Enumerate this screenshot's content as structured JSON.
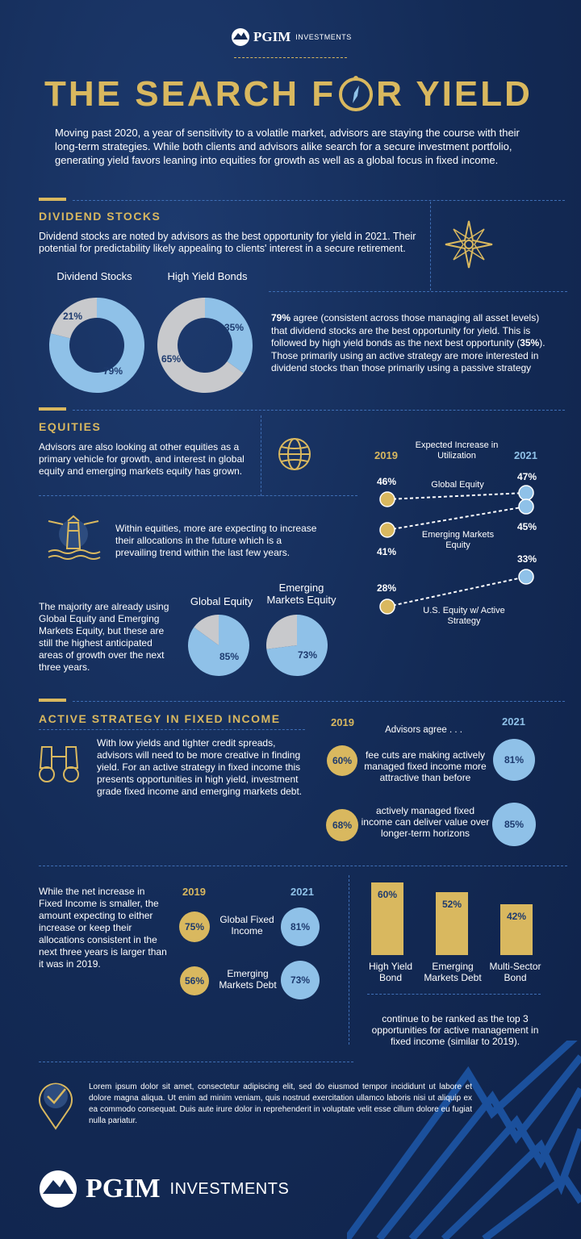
{
  "header": {
    "logo_text": "PGIM",
    "logo_sub": "INVESTMENTS",
    "title_part1": "THE SEARCH F",
    "title_part2": "R YIELD",
    "intro": "Moving past 2020, a year of sensitivity to a volatile market, advisors are staying the course with their long-term strategies. While both clients and advisors alike search for a secure investment portfolio, generating yield favors leaning into equities for growth as well as a global focus in fixed income."
  },
  "dividend": {
    "title": "DIVIDEND  STOCKS",
    "text": "Dividend stocks are noted by advisors as the best opportunity for yield in 2021. Their potential for predictability likely appealing to clients' interest in a secure retirement.",
    "donut1": {
      "label": "Dividend Stocks",
      "main": 79,
      "rest": 21,
      "main_label": "79%",
      "rest_label": "21%"
    },
    "donut2": {
      "label": "High Yield Bonds",
      "main": 35,
      "rest": 65,
      "main_label": "35%",
      "rest_label": "65%"
    },
    "note_bold": "79%",
    "note_a": " agree (consistent across those managing all asset levels) that dividend stocks are the best opportunity for yield.  This is followed by high yield bonds as the next best opportunity (",
    "note_bold2": "35%",
    "note_b": ").  Those primarily using an active strategy are more interested in dividend stocks than those primarily using a passive strategy"
  },
  "equities": {
    "title": "EQUITIES",
    "text1": "Advisors are also looking at other equities as a primary vehicle for growth, and interest in global equity and emerging markets equity has grown.",
    "text2": "Within equities, more are expecting to increase their allocations in the future which is a prevailing trend within the last few years.",
    "text3": "The majority are already using Global Equity and Emerging Markets Equity, but these are still the highest anticipated areas of growth over the next three years.",
    "pie1": {
      "label": "Global Equity",
      "value": 85,
      "value_label": "85%"
    },
    "pie2": {
      "label": "Emerging Markets Equity",
      "value": 73,
      "value_label": "73%"
    },
    "slope": {
      "year_left": "2019",
      "year_right": "2021",
      "header": "Expected Increase in Utilization",
      "rows": [
        {
          "label": "Global  Equity",
          "v2019": "46%",
          "v2021": "47%"
        },
        {
          "label": "Emerging Markets Equity",
          "v2019": "41%",
          "v2021": "45%"
        },
        {
          "label": "U.S. Equity w/ Active Strategy",
          "v2019": "28%",
          "v2021": "33%"
        }
      ]
    }
  },
  "fixed_income": {
    "title": "ACTIVE  STRATEGY  IN  FIXED  INCOME",
    "text1": "With low yields and tighter credit spreads, advisors will need to be more creative in finding yield. For an active strategy in fixed income this presents opportunities in high yield, investment grade fixed income and emerging markets debt.",
    "agree": {
      "year_left": "2019",
      "year_right": "2021",
      "header": "Advisors agree . . .",
      "rows": [
        {
          "text": "fee cuts are making actively managed fixed income more attractive than before",
          "v2019": "60%",
          "v2021": "81%"
        },
        {
          "text": "actively managed fixed income can deliver value over longer-term horizons",
          "v2019": "68%",
          "v2021": "85%"
        }
      ]
    },
    "text2": "While the net increase in Fixed Income is smaller, the amount expecting to either increase or keep their allocations consistent in the next three years is larger than it was in 2019.",
    "alloc": {
      "year_left": "2019",
      "year_right": "2021",
      "rows": [
        {
          "label": "Global Fixed Income",
          "v2019": "75%",
          "v2021": "81%"
        },
        {
          "label": "Emerging Markets Debt",
          "v2019": "56%",
          "v2021": "73%"
        }
      ]
    },
    "bars": [
      {
        "label": "High Yield Bond",
        "value": 60,
        "value_label": "60%"
      },
      {
        "label": "Emerging Markets Debt",
        "value": 52,
        "value_label": "52%"
      },
      {
        "label": "Multi-Sector Bond",
        "value": 42,
        "value_label": "42%"
      }
    ],
    "bars_note": "continue to be ranked as the top 3 opportunities for active management in fixed income (similar to 2019)."
  },
  "footer": {
    "lorem": "Lorem ipsum dolor sit amet, consectetur adipiscing elit, sed do eiusmod tempor incididunt ut labore et dolore magna aliqua. Ut enim ad minim veniam, quis nostrud exercitation ullamco laboris nisi ut aliquip ex ea commodo consequat. Duis aute irure dolor in reprehenderit in voluptate velit esse cillum dolore eu fugiat nulla pariatur.",
    "logo_text": "PGIM",
    "logo_sub": "INVESTMENTS"
  },
  "colors": {
    "gold": "#d9b85f",
    "blue": "#8fc1e8",
    "grey": "#c8c9cc",
    "navy": "#132a55"
  }
}
